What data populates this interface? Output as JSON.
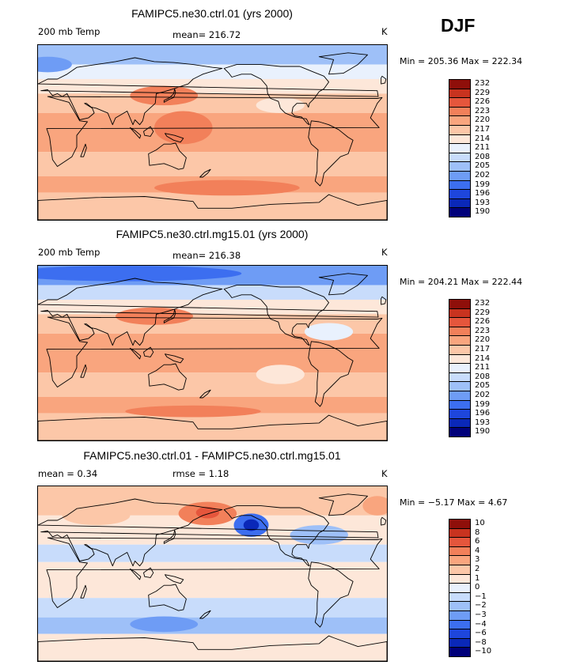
{
  "season": "DJF",
  "panels": [
    {
      "title": "FAMIPC5.ne30.ctrl.01 (yrs 2000)",
      "left_label": "200 mb Temp",
      "center_label": "mean= 216.72",
      "units": "K",
      "minmax": "Min = 205.36 Max = 222.34",
      "colorbar_labels": [
        "232",
        "229",
        "226",
        "223",
        "220",
        "217",
        "214",
        "211",
        "208",
        "205",
        "202",
        "199",
        "196",
        "193",
        "190"
      ],
      "bands": [
        {
          "lat_top": 90,
          "lat_bottom": 70,
          "level": 5
        },
        {
          "lat_top": 70,
          "lat_bottom": 55,
          "level": 7
        },
        {
          "lat_top": 55,
          "lat_bottom": 40,
          "level": 8
        },
        {
          "lat_top": 40,
          "lat_bottom": 20,
          "level": 9
        },
        {
          "lat_top": 20,
          "lat_bottom": -20,
          "level": 10
        },
        {
          "lat_top": -20,
          "lat_bottom": -45,
          "level": 9
        },
        {
          "lat_top": -45,
          "lat_bottom": -62,
          "level": 10
        },
        {
          "lat_top": -62,
          "lat_bottom": -90,
          "level": 9
        }
      ],
      "blobs": [
        {
          "lon": 150,
          "lat": 5,
          "rlon": 30,
          "rlat": 17,
          "level": 11
        },
        {
          "lon": 130,
          "lat": 38,
          "rlon": 35,
          "rlat": 10,
          "level": 11
        },
        {
          "lon": 195,
          "lat": -57,
          "rlon": 75,
          "rlat": 8,
          "level": 11
        },
        {
          "lon": 250,
          "lat": 28,
          "rlon": 25,
          "rlat": 8,
          "level": 8
        },
        {
          "lon": 10,
          "lat": 70,
          "rlon": 25,
          "rlat": 8,
          "level": 4
        }
      ]
    },
    {
      "title": "FAMIPC5.ne30.ctrl.mg15.01 (yrs 2000)",
      "left_label": "200 mb Temp",
      "center_label": "mean= 216.38",
      "units": "K",
      "minmax": "Min = 204.21 Max = 222.44",
      "colorbar_labels": [
        "232",
        "229",
        "226",
        "223",
        "220",
        "217",
        "214",
        "211",
        "208",
        "205",
        "202",
        "199",
        "196",
        "193",
        "190"
      ],
      "bands": [
        {
          "lat_top": 90,
          "lat_bottom": 70,
          "level": 4
        },
        {
          "lat_top": 70,
          "lat_bottom": 55,
          "level": 6
        },
        {
          "lat_top": 55,
          "lat_bottom": 40,
          "level": 8
        },
        {
          "lat_top": 40,
          "lat_bottom": 20,
          "level": 9
        },
        {
          "lat_top": 20,
          "lat_bottom": -20,
          "level": 10
        },
        {
          "lat_top": -20,
          "lat_bottom": -45,
          "level": 9
        },
        {
          "lat_top": -45,
          "lat_bottom": -62,
          "level": 10
        },
        {
          "lat_top": -62,
          "lat_bottom": -90,
          "level": 9
        }
      ],
      "blobs": [
        {
          "lon": 120,
          "lat": 38,
          "rlon": 40,
          "rlat": 9,
          "level": 11
        },
        {
          "lon": 160,
          "lat": -60,
          "rlon": 70,
          "rlat": 6,
          "level": 11
        },
        {
          "lon": 250,
          "lat": -22,
          "rlon": 25,
          "rlat": 10,
          "level": 8
        },
        {
          "lon": 300,
          "lat": 22,
          "rlon": 25,
          "rlat": 9,
          "level": 7
        },
        {
          "lon": 90,
          "lat": 82,
          "rlon": 120,
          "rlat": 8,
          "level": 3
        }
      ]
    },
    {
      "title": "FAMIPC5.ne30.ctrl.01 - FAMIPC5.ne30.ctrl.mg15.01",
      "left_label": "mean =    0.34",
      "center_label": "rmse =    1.18",
      "units": "K",
      "minmax": "Min =  −5.17 Max =   4.67",
      "colorbar_labels": [
        "10",
        "8",
        "6",
        "4",
        "3",
        "2",
        "1",
        "0",
        "−1",
        "−2",
        "−3",
        "−4",
        "−6",
        "−8",
        "−10"
      ],
      "bands": [
        {
          "lat_top": 90,
          "lat_bottom": 60,
          "level": 9
        },
        {
          "lat_top": 60,
          "lat_bottom": 30,
          "level": 8
        },
        {
          "lat_top": 30,
          "lat_bottom": 12,
          "level": 6
        },
        {
          "lat_top": 12,
          "lat_bottom": -25,
          "level": 8
        },
        {
          "lat_top": -25,
          "lat_bottom": -45,
          "level": 6
        },
        {
          "lat_top": -45,
          "lat_bottom": -62,
          "level": 5
        },
        {
          "lat_top": -62,
          "lat_bottom": -90,
          "level": 8
        }
      ],
      "blobs": [
        {
          "lon": 175,
          "lat": 62,
          "rlon": 30,
          "rlat": 12,
          "level": 11
        },
        {
          "lon": 175,
          "lat": 63,
          "rlon": 12,
          "rlat": 6,
          "level": 12
        },
        {
          "lon": 220,
          "lat": 50,
          "rlon": 18,
          "rlat": 12,
          "level": 3
        },
        {
          "lon": 220,
          "lat": 50,
          "rlon": 8,
          "rlat": 6,
          "level": 1
        },
        {
          "lon": 60,
          "lat": 60,
          "rlon": 35,
          "rlat": 10,
          "level": 9
        },
        {
          "lon": 290,
          "lat": 40,
          "rlon": 30,
          "rlat": 10,
          "level": 5
        },
        {
          "lon": 130,
          "lat": -52,
          "rlon": 35,
          "rlat": 8,
          "level": 4
        },
        {
          "lon": 350,
          "lat": 70,
          "rlon": 15,
          "rlat": 10,
          "level": 10
        }
      ]
    }
  ],
  "colors": {
    "palette": [
      "#00007a",
      "#0a28b8",
      "#1e46dc",
      "#3c6ef0",
      "#6e9cf5",
      "#9ec0f8",
      "#c8dcfb",
      "#e9f1fd",
      "#fde7d9",
      "#fcc7a8",
      "#f9a57e",
      "#f2805a",
      "#e5563c",
      "#c8331f",
      "#8f0f0a"
    ],
    "coast": "#000000"
  },
  "chart_data": [
    {
      "type": "heatmap",
      "title": "FAMIPC5.ne30.ctrl.01 (yrs 2000)",
      "variable": "200 mb Temp",
      "season": "DJF",
      "units": "K",
      "mean": 216.72,
      "min": 205.36,
      "max": 222.34,
      "levels": [
        190,
        193,
        196,
        199,
        202,
        205,
        208,
        211,
        214,
        217,
        220,
        223,
        226,
        229,
        232
      ]
    },
    {
      "type": "heatmap",
      "title": "FAMIPC5.ne30.ctrl.mg15.01 (yrs 2000)",
      "variable": "200 mb Temp",
      "season": "DJF",
      "units": "K",
      "mean": 216.38,
      "min": 204.21,
      "max": 222.44,
      "levels": [
        190,
        193,
        196,
        199,
        202,
        205,
        208,
        211,
        214,
        217,
        220,
        223,
        226,
        229,
        232
      ]
    },
    {
      "type": "heatmap",
      "title": "FAMIPC5.ne30.ctrl.01 - FAMIPC5.ne30.ctrl.mg15.01",
      "season": "DJF",
      "units": "K",
      "mean": 0.34,
      "rmse": 1.18,
      "min": -5.17,
      "max": 4.67,
      "levels": [
        -10,
        -8,
        -6,
        -4,
        -3,
        -2,
        -1,
        0,
        1,
        2,
        3,
        4,
        6,
        8,
        10
      ]
    }
  ]
}
